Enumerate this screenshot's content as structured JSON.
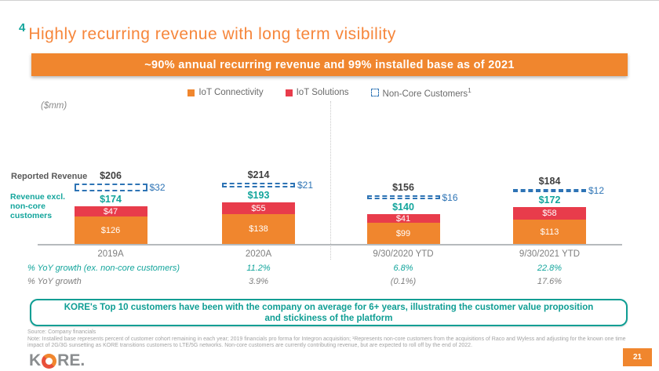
{
  "slide": {
    "number": "4",
    "title": "Highly recurring revenue with long term visibility",
    "banner": "~90% annual recurring revenue and 99% installed base as of 2021",
    "units_label": "($mm)",
    "page_number": "21",
    "logo": {
      "k": "K",
      "re": "RE."
    }
  },
  "legend": [
    {
      "label": "IoT Connectivity",
      "sup": ""
    },
    {
      "label": "IoT Solutions",
      "sup": ""
    },
    {
      "label": "Non-Core Customers",
      "sup": "1"
    }
  ],
  "chart_data": {
    "type": "bar",
    "stacked": true,
    "categories": [
      "2019A",
      "2020A",
      "9/30/2020 YTD",
      "9/30/2021 YTD"
    ],
    "series": [
      {
        "name": "IoT Connectivity",
        "values": [
          126,
          138,
          99,
          113
        ],
        "color": "#f0862e"
      },
      {
        "name": "IoT Solutions",
        "values": [
          47,
          55,
          41,
          58
        ],
        "color": "#e83c4b"
      },
      {
        "name": "Non-Core Customers",
        "values": [
          32,
          21,
          16,
          12
        ],
        "color": "#2e74b5",
        "style": "dashed-outline"
      }
    ],
    "reported_revenue": [
      206,
      214,
      156,
      184
    ],
    "revenue_excl_non_core": [
      174,
      193,
      140,
      172
    ],
    "row_labels": {
      "reported": "Reported Revenue",
      "excl": "Revenue excl. non-core customers"
    },
    "growth_rows": [
      {
        "label": "% YoY growth (ex. non-core customers)",
        "style": "teal",
        "values": [
          "",
          "11.2%",
          "6.8%",
          "22.8%"
        ]
      },
      {
        "label": "% YoY growth",
        "style": "gray",
        "values": [
          "",
          "3.9%",
          "(0.1%)",
          "17.6%"
        ]
      }
    ],
    "ylabel": "($mm)",
    "legend_position": "top",
    "grid": false,
    "currency_prefix": "$"
  },
  "callout": "KORE's Top 10 customers have been with the company on average for 6+ years, illustrating the customer value proposition and stickiness of the platform",
  "footnotes": {
    "source": "Source: Company financials",
    "note": "Note: Installed base represents percent of customer cohort remaining in each year; 2019 financials pro forma for Integron acquisition; ¹Represents non-core customers from the acquisitions of Raco and Wyless and adjusting for the known one time impact of 2G/3G sunsetting as KORE transitions customers to LTE/5G networks. Non-core customers are currently contributing revenue, but are expected to roll off by the end of 2022."
  },
  "colors": {
    "orange": "#f0862e",
    "red": "#e83c4b",
    "teal": "#13a59c",
    "dashed_blue": "#2e74b5",
    "dark_text": "#404040",
    "gray_text": "#7f7f7f"
  }
}
